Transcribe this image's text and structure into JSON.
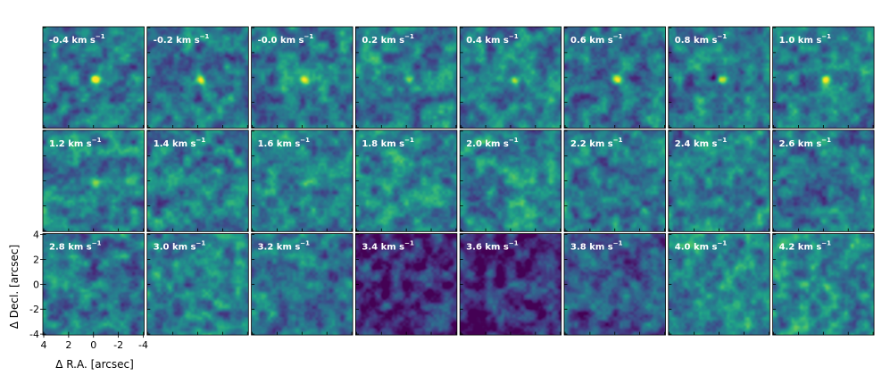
{
  "figure": {
    "type": "channel-map-grid",
    "rows": 3,
    "cols": 8,
    "colormap": "viridis",
    "velocity_unit_text": "km s",
    "velocity_unit_exponent": "−1",
    "xlabel": "Δ R.A. [arcsec]",
    "ylabel": "Δ Decl. [arcsec]",
    "x_ticks": [
      "4",
      "2",
      "0",
      "-2",
      "-4"
    ],
    "y_ticks": [
      "4",
      "2",
      "0",
      "-2",
      "-4"
    ],
    "xlim": [
      4,
      -4
    ],
    "ylim": [
      -4,
      4
    ]
  },
  "panels": [
    {
      "velocity": "-0.4",
      "source": 1.0,
      "bg": 0.4,
      "seed": 11,
      "hole": 0.0
    },
    {
      "velocity": "-0.2",
      "source": 0.9,
      "bg": 0.38,
      "seed": 12,
      "hole": 0.0
    },
    {
      "velocity": "-0.0",
      "source": 1.0,
      "bg": 0.42,
      "seed": 13,
      "hole": 0.0
    },
    {
      "velocity": "0.2",
      "source": 0.8,
      "bg": 0.42,
      "seed": 14,
      "hole": 0.0
    },
    {
      "velocity": "0.4",
      "source": 1.0,
      "bg": 0.42,
      "seed": 15,
      "hole": 0.0
    },
    {
      "velocity": "0.6",
      "source": 0.9,
      "bg": 0.38,
      "seed": 16,
      "hole": 0.0
    },
    {
      "velocity": "0.8",
      "source": 0.9,
      "bg": 0.4,
      "seed": 17,
      "hole": 0.9
    },
    {
      "velocity": "1.0",
      "source": 1.0,
      "bg": 0.42,
      "seed": 18,
      "hole": 0.0
    },
    {
      "velocity": "1.2",
      "source": 0.5,
      "bg": 0.44,
      "seed": 21,
      "hole": 0.0
    },
    {
      "velocity": "1.4",
      "source": 0.0,
      "bg": 0.42,
      "seed": 22,
      "hole": 0.0
    },
    {
      "velocity": "1.6",
      "source": 0.5,
      "bg": 0.44,
      "seed": 23,
      "hole": 0.0
    },
    {
      "velocity": "1.8",
      "source": 0.0,
      "bg": 0.44,
      "seed": 24,
      "hole": 0.0
    },
    {
      "velocity": "2.0",
      "source": 0.0,
      "bg": 0.44,
      "seed": 25,
      "hole": 0.0
    },
    {
      "velocity": "2.2",
      "source": 0.0,
      "bg": 0.42,
      "seed": 26,
      "hole": 0.0
    },
    {
      "velocity": "2.4",
      "source": 0.0,
      "bg": 0.42,
      "seed": 27,
      "hole": 0.0
    },
    {
      "velocity": "2.6",
      "source": 0.0,
      "bg": 0.4,
      "seed": 28,
      "hole": 0.0
    },
    {
      "velocity": "2.8",
      "source": 0.0,
      "bg": 0.38,
      "seed": 31,
      "hole": 0.0
    },
    {
      "velocity": "3.0",
      "source": 0.0,
      "bg": 0.46,
      "seed": 32,
      "hole": 0.0
    },
    {
      "velocity": "3.2",
      "source": 0.0,
      "bg": 0.4,
      "seed": 33,
      "hole": 0.0
    },
    {
      "velocity": "3.4",
      "source": 0.0,
      "bg": 0.14,
      "seed": 34,
      "hole": 0.0
    },
    {
      "velocity": "3.6",
      "source": 0.0,
      "bg": 0.12,
      "seed": 35,
      "hole": 0.0
    },
    {
      "velocity": "3.8",
      "source": 0.0,
      "bg": 0.26,
      "seed": 36,
      "hole": 0.0
    },
    {
      "velocity": "4.0",
      "source": 0.5,
      "bg": 0.46,
      "seed": 37,
      "hole": 0.0
    },
    {
      "velocity": "4.2",
      "source": 0.5,
      "bg": 0.46,
      "seed": 38,
      "hole": 0.0
    }
  ]
}
